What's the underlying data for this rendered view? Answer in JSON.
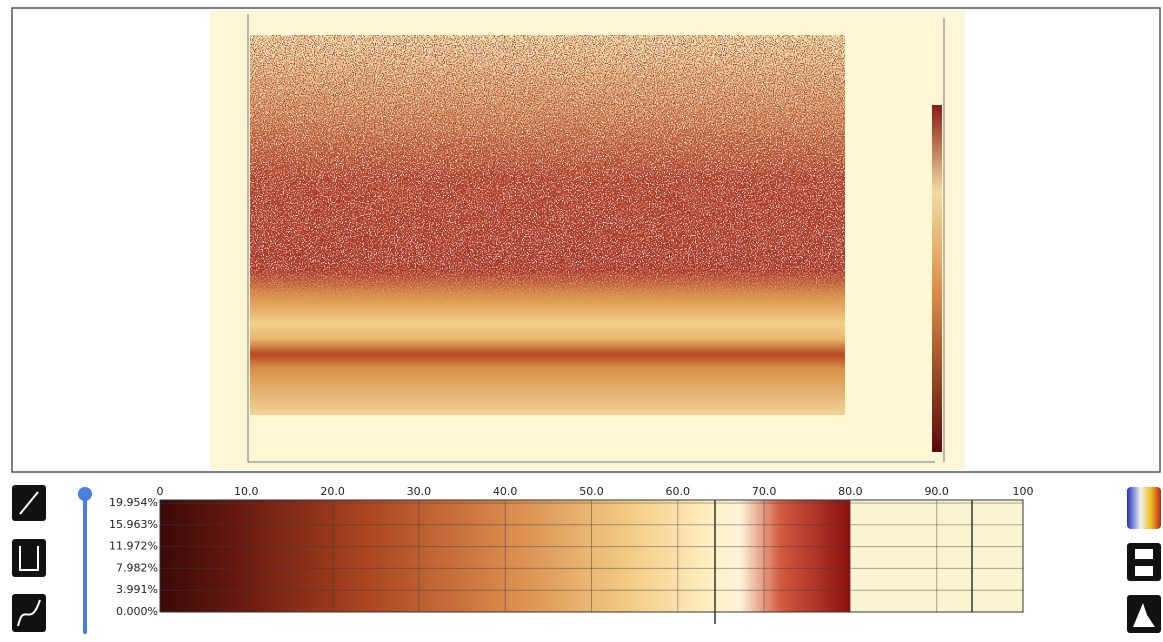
{
  "histogram": {
    "xticks": [
      0,
      {
        "value": 10,
        "label": "10.0"
      },
      {
        "value": 20,
        "label": "20.0"
      },
      {
        "value": 30,
        "label": "30.0"
      },
      {
        "value": 40,
        "label": "40.0"
      },
      {
        "value": 50,
        "label": "50.0"
      },
      {
        "value": 60,
        "label": "60.0"
      },
      {
        "value": 70,
        "label": "70.0"
      },
      {
        "value": 80,
        "label": "80.0"
      },
      {
        "value": 90,
        "label": "90.0"
      },
      100
    ],
    "yticks": [
      {
        "value": 19.954,
        "label": "19.954%"
      },
      {
        "value": 15.963,
        "label": "15.963%"
      },
      {
        "value": 11.972,
        "label": "11.972%"
      },
      {
        "value": 7.982,
        "label": "7.982%"
      },
      {
        "value": 3.991,
        "label": "3.991%"
      },
      {
        "value": 0,
        "label": "0.000%"
      }
    ]
  }
}
